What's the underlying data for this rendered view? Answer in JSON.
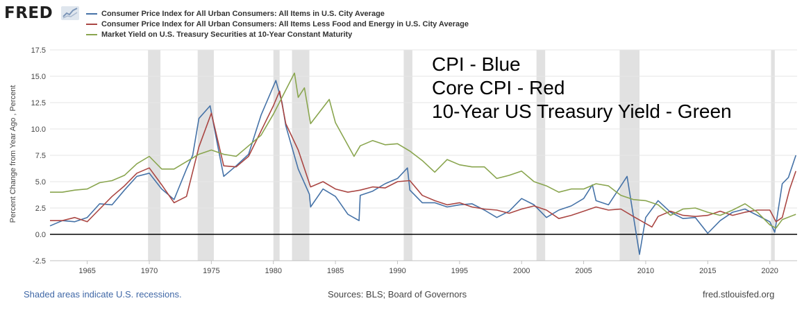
{
  "header": {
    "logo_text": "FRED",
    "logo_badge_icon": "line-chart-icon"
  },
  "legend": [
    {
      "label": "Consumer Price Index for All Urban Consumers: All Items in U.S. City Average",
      "color": "#4572a7"
    },
    {
      "label": "Consumer Price Index for All Urban Consumers: All Items Less Food and Energy in U.S. City Average",
      "color": "#aa4643"
    },
    {
      "label": "Market Yield on U.S. Treasury Securities at 10-Year Constant Maturity",
      "color": "#89a54e"
    }
  ],
  "annotations": [
    "CPI - Blue",
    "Core CPI - Red",
    "10-Year US Treasury Yield - Green"
  ],
  "footer": {
    "left": "Shaded areas indicate U.S. recessions.",
    "middle": "Sources: BLS; Board of Governors",
    "right": "fred.stlouisfed.org"
  },
  "chart_data": {
    "type": "line",
    "title": "",
    "xlabel": "",
    "ylabel": "Percent Change from Year Ago , Percent",
    "xlim": [
      1962.0,
      2022.2
    ],
    "ylim": [
      -2.5,
      17.5
    ],
    "yticks": [
      "-2.5",
      "0.0",
      "2.5",
      "5.0",
      "7.5",
      "10.0",
      "12.5",
      "15.0",
      "17.5"
    ],
    "xticks": [
      "1965",
      "1970",
      "1975",
      "1980",
      "1985",
      "1990",
      "1995",
      "2000",
      "2005",
      "2010",
      "2015",
      "2020"
    ],
    "recessions": [
      [
        1969.9,
        1970.9
      ],
      [
        1973.9,
        1975.2
      ],
      [
        1980.0,
        1980.5
      ],
      [
        1981.5,
        1982.9
      ],
      [
        1990.5,
        1991.2
      ],
      [
        2001.2,
        2001.9
      ],
      [
        2007.9,
        2009.5
      ],
      [
        2020.1,
        2020.4
      ]
    ],
    "series": [
      {
        "name": "CPI",
        "color": "#4572a7",
        "x": [
          1962,
          1963,
          1964,
          1965,
          1966,
          1967,
          1968,
          1969,
          1970,
          1971,
          1972,
          1973,
          1973.5,
          1974,
          1974.9,
          1975.5,
          1976,
          1977,
          1978,
          1979,
          1980.2,
          1980.7,
          1981,
          1982,
          1982.9,
          1983,
          1984,
          1985,
          1986,
          1986.9,
          1987,
          1988,
          1989,
          1990,
          1990.8,
          1991,
          1992,
          1993,
          1994,
          1995,
          1996,
          1997,
          1998,
          1999,
          2000,
          2001,
          2002,
          2003,
          2004,
          2005,
          2005.7,
          2006,
          2007,
          2008.5,
          2009.5,
          2010,
          2011,
          2012,
          2013,
          2014,
          2015,
          2016,
          2017,
          2018,
          2019,
          2020,
          2020.4,
          2021,
          2021.5,
          2022.1
        ],
        "y": [
          0.8,
          1.3,
          1.2,
          1.6,
          2.9,
          2.8,
          4.2,
          5.5,
          5.8,
          4.3,
          3.3,
          6.2,
          7.5,
          11.0,
          12.2,
          8.5,
          5.5,
          6.5,
          7.6,
          11.3,
          14.6,
          12.5,
          10.3,
          6.2,
          3.8,
          2.6,
          4.3,
          3.6,
          1.9,
          1.3,
          3.7,
          4.1,
          4.8,
          5.3,
          6.3,
          4.2,
          3.0,
          3.0,
          2.6,
          2.8,
          2.9,
          2.3,
          1.6,
          2.2,
          3.4,
          2.8,
          1.6,
          2.3,
          2.7,
          3.4,
          4.7,
          3.2,
          2.8,
          5.5,
          -1.9,
          1.6,
          3.2,
          2.1,
          1.5,
          1.6,
          0.1,
          1.3,
          2.1,
          2.4,
          1.8,
          1.2,
          0.2,
          4.8,
          5.4,
          7.5
        ]
      },
      {
        "name": "Core CPI",
        "color": "#aa4643",
        "x": [
          1962,
          1963,
          1964,
          1965,
          1966,
          1967,
          1968,
          1969,
          1970,
          1971,
          1972,
          1973,
          1974,
          1975,
          1976,
          1977,
          1978,
          1979,
          1980,
          1980.5,
          1981,
          1982,
          1983,
          1984,
          1985,
          1986,
          1987,
          1988,
          1989,
          1990,
          1991,
          1992,
          1993,
          1994,
          1995,
          1996,
          1997,
          1998,
          1999,
          2000,
          2001,
          2002,
          2003,
          2004,
          2005,
          2006,
          2007,
          2008,
          2009,
          2010.5,
          2011,
          2012,
          2013,
          2014,
          2015,
          2016,
          2017,
          2018,
          2019,
          2020,
          2020.5,
          2021,
          2021.6,
          2022.1
        ],
        "y": [
          1.3,
          1.3,
          1.6,
          1.2,
          2.4,
          3.6,
          4.6,
          5.8,
          6.3,
          4.7,
          3.0,
          3.6,
          8.3,
          11.5,
          6.5,
          6.4,
          7.4,
          9.8,
          12.2,
          13.6,
          10.5,
          8.0,
          4.5,
          5.0,
          4.3,
          4.0,
          4.2,
          4.5,
          4.4,
          5.0,
          5.1,
          3.7,
          3.2,
          2.8,
          3.0,
          2.6,
          2.4,
          2.3,
          2.0,
          2.4,
          2.7,
          2.3,
          1.5,
          1.8,
          2.2,
          2.6,
          2.3,
          2.4,
          1.7,
          0.7,
          1.7,
          2.2,
          1.8,
          1.7,
          1.8,
          2.2,
          1.8,
          2.1,
          2.3,
          2.3,
          1.2,
          1.6,
          4.3,
          6.0
        ]
      },
      {
        "name": "10-Year Treasury Yield",
        "color": "#89a54e",
        "x": [
          1962,
          1963,
          1964,
          1965,
          1966,
          1967,
          1968,
          1969,
          1970,
          1971,
          1972,
          1973,
          1974,
          1975,
          1976,
          1977,
          1978,
          1979,
          1980,
          1981.7,
          1982,
          1982.5,
          1983,
          1984.5,
          1985,
          1986.5,
          1987,
          1988,
          1989,
          1990,
          1991,
          1992,
          1993,
          1994,
          1995,
          1996,
          1997,
          1998,
          1999,
          2000,
          2001,
          2002,
          2003,
          2004,
          2005,
          2006,
          2007,
          2008,
          2009,
          2010,
          2011,
          2012,
          2013,
          2014,
          2015,
          2016,
          2017,
          2018,
          2019,
          2020,
          2020.5,
          2021,
          2022.1
        ],
        "y": [
          4.0,
          4.0,
          4.2,
          4.3,
          4.9,
          5.1,
          5.6,
          6.7,
          7.4,
          6.2,
          6.2,
          6.9,
          7.6,
          8.0,
          7.6,
          7.4,
          8.4,
          9.4,
          11.4,
          15.3,
          13.0,
          13.9,
          10.5,
          12.8,
          10.6,
          7.4,
          8.4,
          8.9,
          8.5,
          8.6,
          7.9,
          7.0,
          5.9,
          7.1,
          6.6,
          6.4,
          6.4,
          5.3,
          5.6,
          6.0,
          5.0,
          4.6,
          4.0,
          4.3,
          4.3,
          4.8,
          4.6,
          3.7,
          3.3,
          3.2,
          2.8,
          1.8,
          2.4,
          2.5,
          2.1,
          1.8,
          2.3,
          2.9,
          2.1,
          0.9,
          0.6,
          1.4,
          1.9
        ]
      }
    ]
  }
}
